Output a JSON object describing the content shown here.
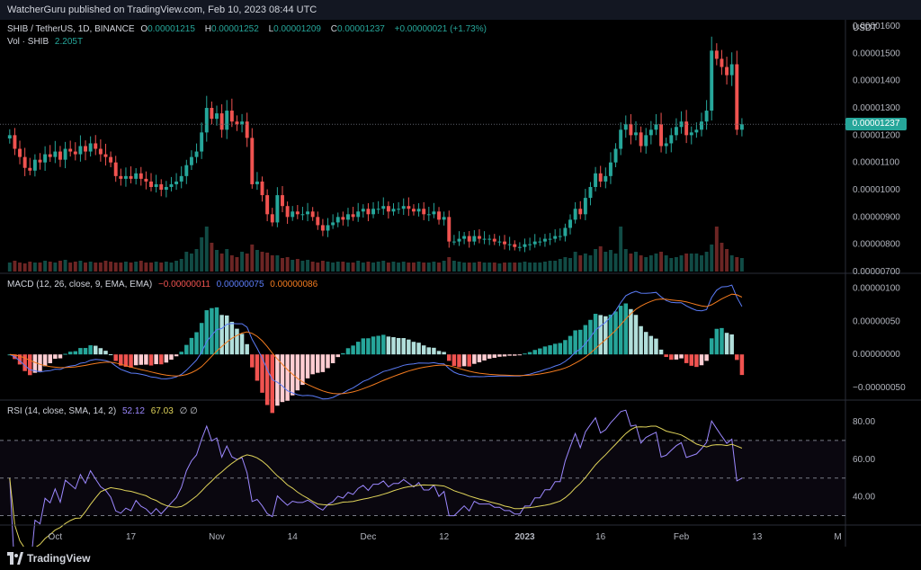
{
  "header": {
    "publisher": "WatcherGuru published on TradingView.com, Feb 10, 2023 08:44 UTC"
  },
  "price_legend": {
    "symbol": "SHIB / TetherUS, 1D, BINANCE",
    "o_label": "O",
    "o": "0.00001215",
    "h_label": "H",
    "h": "0.00001252",
    "l_label": "L",
    "l": "0.00001209",
    "c_label": "C",
    "c": "0.00001237",
    "change": "+0.00000021 (+1.73%)",
    "vol_label": "Vol · SHIB",
    "vol": "2.205T"
  },
  "macd_legend": {
    "label": "MACD (12, 26, close, 9, EMA, EMA)",
    "hist": "−0.00000011",
    "macd": "0.00000075",
    "signal": "0.00000086"
  },
  "rsi_legend": {
    "label": "RSI (14, close, SMA, 14, 2)",
    "rsi": "52.12",
    "sma": "67.03",
    "icons": "∅ ∅"
  },
  "currency": "USDT",
  "last_price": "0.00001237",
  "footer": {
    "brand": "TradingView"
  },
  "colors": {
    "up": "#26a69a",
    "down": "#f05350",
    "macd": "#5b7cf7",
    "signal": "#f57c1f",
    "rsi": "#9c88ff",
    "rsi_sma": "#e0d45a",
    "hist_up_strong": "#26a69a",
    "hist_up_weak": "#b2dfdb",
    "hist_down_strong": "#f05350",
    "hist_down_weak": "#ffcdd2"
  },
  "chart_data": {
    "type": "candlestick",
    "price_axis": {
      "ticks": [
        "0.00001600",
        "0.00001500",
        "0.00001400",
        "0.00001300",
        "0.00001200",
        "0.00001100",
        "0.00001000",
        "0.00000900",
        "0.00000800",
        "0.00000700"
      ],
      "range": [
        7e-06,
        1.61e-05
      ]
    },
    "macd_axis": {
      "ticks": [
        "0.00000100",
        "0.00000050",
        "0.00000000",
        "−0.00000050"
      ],
      "range": [
        -6.5e-07,
        1.2e-06
      ]
    },
    "rsi_axis": {
      "ticks": [
        "80.00",
        "60.00",
        "40.00"
      ],
      "range": [
        25,
        90
      ],
      "bands": [
        30,
        50,
        70
      ]
    },
    "x_labels": [
      "Oct",
      "17",
      "Nov",
      "14",
      "Dec",
      "12",
      "2023",
      "16",
      "Feb",
      "13",
      "M"
    ],
    "x_label_index": [
      9,
      24,
      41,
      56,
      71,
      86,
      102,
      117,
      133,
      148,
      164
    ],
    "closes": [
      12.0,
      11.5,
      11.2,
      10.8,
      10.7,
      11.1,
      11.0,
      11.3,
      11.2,
      11.4,
      11.1,
      11.5,
      11.4,
      11.3,
      11.6,
      11.4,
      11.7,
      11.5,
      11.3,
      11.2,
      11.0,
      10.5,
      10.4,
      10.5,
      10.4,
      10.6,
      10.4,
      10.3,
      10.1,
      10.2,
      10.0,
      10.1,
      10.2,
      10.3,
      10.5,
      10.9,
      11.2,
      11.4,
      12.1,
      13.0,
      12.6,
      12.8,
      12.2,
      12.9,
      12.5,
      12.4,
      12.5,
      11.9,
      10.2,
      10.3,
      9.8,
      9.1,
      8.8,
      9.8,
      9.4,
      9.0,
      9.2,
      9.1,
      9.1,
      9.2,
      9.0,
      8.7,
      8.5,
      8.7,
      8.8,
      9.0,
      8.9,
      9.1,
      9.0,
      9.2,
      9.3,
      9.1,
      9.3,
      9.3,
      9.4,
      9.2,
      9.3,
      9.3,
      9.4,
      9.3,
      9.2,
      9.3,
      9.1,
      9.1,
      9.2,
      8.9,
      9.0,
      8.1,
      8.1,
      8.2,
      8.3,
      8.1,
      8.3,
      8.2,
      8.2,
      8.2,
      8.1,
      8.1,
      8.0,
      8.0,
      7.9,
      7.9,
      8.0,
      8.0,
      8.1,
      8.1,
      8.2,
      8.2,
      8.3,
      8.3,
      8.6,
      8.9,
      9.3,
      9.1,
      9.7,
      10.1,
      10.6,
      10.3,
      10.5,
      11.0,
      11.5,
      12.2,
      12.4,
      12.0,
      12.1,
      11.6,
      12.0,
      12.2,
      12.4,
      11.6,
      11.7,
      12.0,
      12.3,
      12.5,
      12.0,
      12.1,
      12.2,
      12.5,
      12.9,
      15.1,
      14.8,
      14.5,
      14.2,
      14.6,
      12.2,
      12.4
    ],
    "volumes": [
      1,
      1.2,
      1,
      0.9,
      1.1,
      1,
      1,
      1.2,
      1.1,
      1,
      1.2,
      1.3,
      1,
      1.1,
      1.2,
      1,
      1.1,
      1,
      1,
      1.2,
      1.1,
      1,
      1,
      1.1,
      1,
      1.1,
      1.2,
      1,
      1,
      1.1,
      1,
      1.1,
      1,
      1.2,
      1.4,
      2.2,
      2.0,
      2.5,
      3.8,
      5.0,
      3.2,
      2.4,
      2.0,
      2.5,
      1.8,
      1.6,
      2.2,
      2.0,
      3.0,
      2.4,
      2.2,
      2.1,
      1.8,
      1.8,
      1.5,
      1.6,
      1.3,
      1.4,
      1.2,
      1.3,
      1.1,
      1.0,
      1.2,
      1.1,
      1.0,
      1.1,
      1.1,
      1.0,
      1.0,
      1.2,
      1.0,
      1.1,
      1.0,
      1.1,
      1.2,
      1.0,
      1.1,
      1.0,
      1.1,
      1.0,
      1.0,
      1.1,
      1.0,
      1.0,
      1.1,
      1.0,
      1.2,
      1.6,
      1.2,
      1.1,
      1.0,
      1.0,
      1.0,
      1.1,
      1.0,
      1.0,
      1.0,
      0.9,
      1.0,
      1.0,
      1.0,
      1.0,
      1.1,
      1.0,
      1.0,
      1.0,
      1.1,
      1.2,
      1.2,
      1.4,
      1.6,
      1.5,
      2.2,
      1.8,
      2.0,
      1.8,
      2.5,
      2.8,
      2.2,
      2.4,
      2.0,
      5.0,
      2.5,
      2.0,
      2.2,
      1.8,
      1.6,
      1.8,
      2.0,
      2.2,
      1.8,
      1.5,
      1.6,
      1.8,
      2.0,
      2.0,
      2.0,
      1.8,
      2.2,
      3.0,
      5.0,
      3.2,
      2.5,
      1.8,
      1.6,
      1.5
    ]
  }
}
